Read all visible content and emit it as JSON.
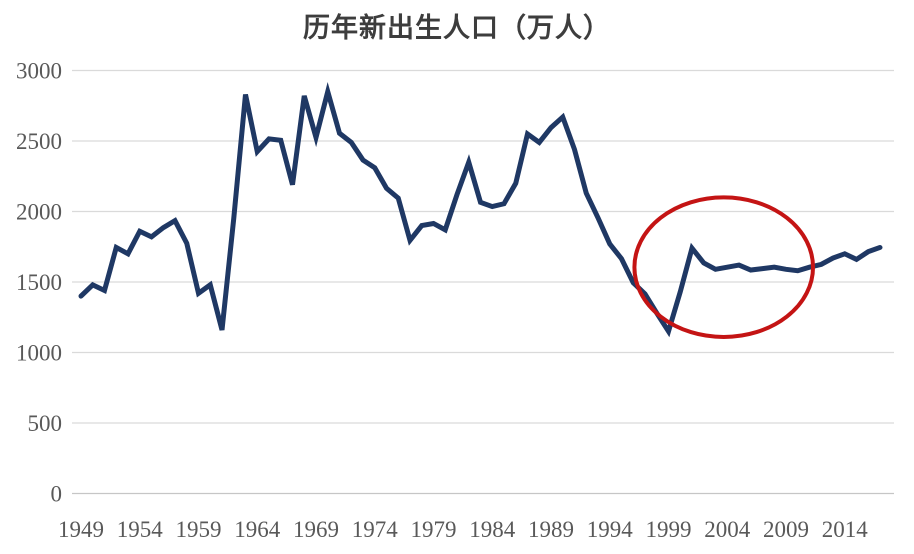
{
  "chart": {
    "title": "历年新出生人口（万人）"
  },
  "chart_data": {
    "type": "line",
    "title": "历年新出生人口（万人）",
    "series_name": "新出生人口",
    "x": [
      1949,
      1950,
      1951,
      1952,
      1953,
      1954,
      1955,
      1956,
      1957,
      1958,
      1959,
      1960,
      1961,
      1962,
      1963,
      1964,
      1965,
      1966,
      1967,
      1968,
      1969,
      1970,
      1971,
      1972,
      1973,
      1974,
      1975,
      1976,
      1977,
      1978,
      1979,
      1980,
      1981,
      1982,
      1983,
      1984,
      1985,
      1986,
      1987,
      1988,
      1989,
      1990,
      1991,
      1992,
      1993,
      1994,
      1995,
      1996,
      1997,
      1998,
      1999,
      2000,
      2001,
      2002,
      2003,
      2004,
      2005,
      2006,
      2007,
      2008,
      2009,
      2010,
      2011,
      2012,
      2013,
      2014,
      2015,
      2016,
      2017
    ],
    "values": [
      1400,
      1480,
      1440,
      1745,
      1700,
      1860,
      1820,
      1885,
      1935,
      1775,
      1420,
      1480,
      1160,
      1950,
      2830,
      2425,
      2515,
      2505,
      2190,
      2820,
      2525,
      2850,
      2555,
      2490,
      2365,
      2310,
      2165,
      2095,
      1795,
      1900,
      1915,
      1870,
      2120,
      2350,
      2065,
      2035,
      2055,
      2200,
      2550,
      2490,
      2595,
      2670,
      2440,
      2130,
      1955,
      1770,
      1665,
      1495,
      1415,
      1280,
      1150,
      1430,
      1740,
      1635,
      1590,
      1605,
      1620,
      1585,
      1595,
      1605,
      1590,
      1580,
      1605,
      1625,
      1670,
      1700,
      1660,
      1715,
      1745
    ],
    "xticks": [
      1949,
      1954,
      1959,
      1964,
      1969,
      1974,
      1979,
      1984,
      1989,
      1994,
      1999,
      2004,
      2009,
      2014
    ],
    "yticks": [
      0,
      500,
      1000,
      1500,
      2000,
      2500,
      3000
    ],
    "ylim": [
      0,
      3000
    ],
    "xlabel": "",
    "ylabel": "",
    "grid": "horizontal",
    "legend": "none",
    "line_color": "#1F3864",
    "gridline_color": "#DADADA",
    "zero_line_color": "#C6C6C6",
    "tick_label_color": "#595959",
    "title_color": "#3D3D3D",
    "annotation": {
      "shape": "ellipse",
      "color": "#C41414",
      "x_center_year": 2003.7,
      "y_center_value": 1605,
      "x_radius_years": 7.6,
      "y_radius_value": 495
    }
  }
}
